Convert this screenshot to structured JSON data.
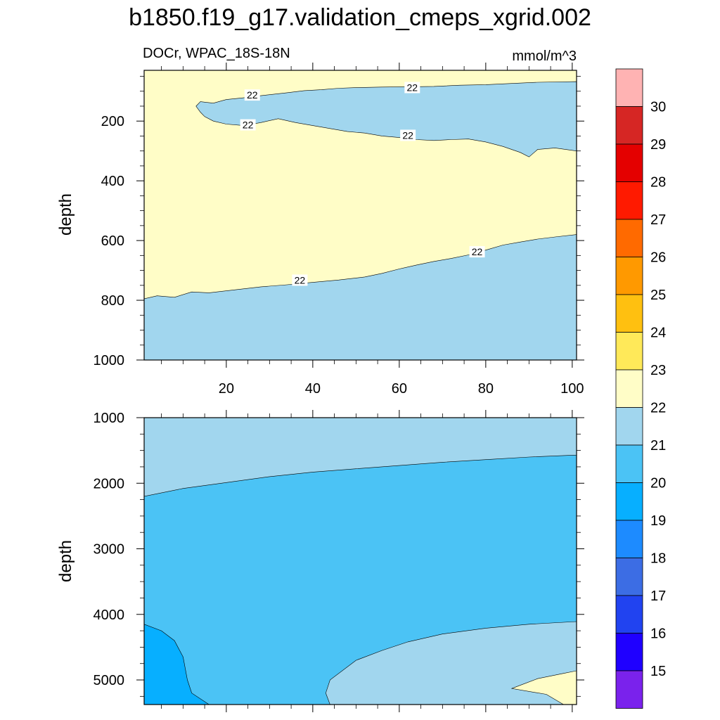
{
  "title": "b1850.f19_g17.validation_cmeps_xgrid.002",
  "chart_data": [
    {
      "type": "contour",
      "subtitle_left": "DOCr, WPAC_18S-18N",
      "subtitle_right": "mmol/m^3",
      "ylabel": "depth",
      "xlim": [
        1,
        101
      ],
      "ylim": [
        30,
        1000
      ],
      "y_inverted": true,
      "xticks": [
        20,
        40,
        60,
        80,
        100
      ],
      "xtick_labels": [
        "20",
        "40",
        "60",
        "80",
        "100"
      ],
      "yticks": [
        200,
        400,
        600,
        800,
        1000
      ],
      "ytick_labels": [
        "200",
        "400",
        "600",
        "800",
        "1000"
      ],
      "contour_labels": [
        {
          "text": "22",
          "x": 26,
          "y": 115
        },
        {
          "text": "22",
          "x": 63,
          "y": 90
        },
        {
          "text": "22",
          "x": 25,
          "y": 215
        },
        {
          "text": "22",
          "x": 62,
          "y": 250
        },
        {
          "text": "22",
          "x": 37,
          "y": 735
        },
        {
          "text": "22",
          "x": 78,
          "y": 640
        }
      ],
      "regions": [
        {
          "level": "22-23",
          "color": "#fffdc7",
          "polygon": [
            [
              1,
              30
            ],
            [
              101,
              30
            ],
            [
              101,
              1000
            ],
            [
              1,
              1000
            ]
          ]
        },
        {
          "level": "21-22",
          "color": "#a1d6ee",
          "polygon": [
            [
              1,
              795
            ],
            [
              4,
              785
            ],
            [
              8,
              790
            ],
            [
              12,
              772
            ],
            [
              16,
              775
            ],
            [
              22,
              765
            ],
            [
              28,
              755
            ],
            [
              34,
              748
            ],
            [
              40,
              740
            ],
            [
              46,
              732
            ],
            [
              52,
              722
            ],
            [
              56,
              710
            ],
            [
              60,
              695
            ],
            [
              64,
              682
            ],
            [
              68,
              670
            ],
            [
              72,
              660
            ],
            [
              76,
              648
            ],
            [
              80,
              632
            ],
            [
              84,
              615
            ],
            [
              88,
              605
            ],
            [
              92,
              595
            ],
            [
              96,
              588
            ],
            [
              101,
              580
            ],
            [
              101,
              1000
            ],
            [
              1,
              1000
            ]
          ]
        },
        {
          "level": "21-22",
          "color": "#a1d6ee",
          "polygon": [
            [
              13,
              150
            ],
            [
              14,
              135
            ],
            [
              17,
              140
            ],
            [
              20,
              128
            ],
            [
              24,
              122
            ],
            [
              28,
              115
            ],
            [
              34,
              105
            ],
            [
              38,
              98
            ],
            [
              42,
              95
            ],
            [
              46,
              90
            ],
            [
              50,
              88
            ],
            [
              56,
              86
            ],
            [
              62,
              85
            ],
            [
              68,
              84
            ],
            [
              74,
              80
            ],
            [
              80,
              78
            ],
            [
              86,
              74
            ],
            [
              92,
              70
            ],
            [
              101,
              68
            ],
            [
              101,
              300
            ],
            [
              96,
              290
            ],
            [
              92,
              295
            ],
            [
              90,
              320
            ],
            [
              88,
              305
            ],
            [
              84,
              285
            ],
            [
              80,
              270
            ],
            [
              76,
              260
            ],
            [
              72,
              262
            ],
            [
              68,
              265
            ],
            [
              64,
              262
            ],
            [
              60,
              255
            ],
            [
              56,
              250
            ],
            [
              52,
              240
            ],
            [
              48,
              235
            ],
            [
              44,
              225
            ],
            [
              40,
              215
            ],
            [
              36,
              205
            ],
            [
              32,
              192
            ],
            [
              28,
              205
            ],
            [
              24,
              215
            ],
            [
              20,
              210
            ],
            [
              17,
              200
            ],
            [
              15,
              185
            ],
            [
              14,
              170
            ]
          ]
        }
      ]
    },
    {
      "type": "contour",
      "ylabel": "depth",
      "xlim": [
        1,
        101
      ],
      "ylim": [
        1000,
        5375
      ],
      "y_inverted": true,
      "yticks": [
        1000,
        2000,
        3000,
        4000,
        5000
      ],
      "ytick_labels": [
        "1000",
        "2000",
        "3000",
        "4000",
        "5000"
      ],
      "regions": [
        {
          "level": "20-21",
          "color": "#4bc3f5",
          "polygon": [
            [
              1,
              1000
            ],
            [
              101,
              1000
            ],
            [
              101,
              5375
            ],
            [
              1,
              5375
            ]
          ]
        },
        {
          "level": "21-22",
          "color": "#a1d6ee",
          "polygon": [
            [
              1,
              1000
            ],
            [
              101,
              1000
            ],
            [
              101,
              1570
            ],
            [
              90,
              1600
            ],
            [
              80,
              1640
            ],
            [
              70,
              1680
            ],
            [
              60,
              1730
            ],
            [
              50,
              1780
            ],
            [
              40,
              1830
            ],
            [
              30,
              1900
            ],
            [
              20,
              1990
            ],
            [
              10,
              2080
            ],
            [
              1,
              2200
            ]
          ]
        },
        {
          "level": "19-20",
          "color": "#07afff",
          "polygon": [
            [
              1,
              4150
            ],
            [
              5,
              4250
            ],
            [
              8,
              4400
            ],
            [
              10,
              4650
            ],
            [
              11,
              5000
            ],
            [
              12,
              5200
            ],
            [
              16,
              5375
            ],
            [
              1,
              5375
            ]
          ]
        },
        {
          "level": "21-22",
          "color": "#a1d6ee",
          "polygon": [
            [
              44,
              5375
            ],
            [
              43,
              5200
            ],
            [
              44,
              5000
            ],
            [
              50,
              4700
            ],
            [
              56,
              4550
            ],
            [
              62,
              4420
            ],
            [
              70,
              4300
            ],
            [
              80,
              4210
            ],
            [
              90,
              4150
            ],
            [
              101,
              4110
            ],
            [
              101,
              5375
            ]
          ]
        },
        {
          "level": "22-23",
          "color": "#fffdc7",
          "polygon": [
            [
              86,
              5130
            ],
            [
              92,
              4980
            ],
            [
              98,
              4900
            ],
            [
              101,
              4860
            ],
            [
              101,
              5375
            ],
            [
              98,
              5375
            ],
            [
              94,
              5220
            ]
          ]
        }
      ]
    }
  ],
  "colorbar": {
    "labels": [
      "30",
      "29",
      "28",
      "27",
      "26",
      "25",
      "24",
      "23",
      "22",
      "21",
      "20",
      "19",
      "18",
      "17",
      "16",
      "15"
    ],
    "colors": [
      "#ffb3b3",
      "#d62624",
      "#e40000",
      "#ff1a00",
      "#ff6a00",
      "#ff9900",
      "#ffc010",
      "#ffe959",
      "#fffdc7",
      "#a1d6ee",
      "#4bc3f5",
      "#07afff",
      "#1d8bff",
      "#3c6de4",
      "#2143f0",
      "#1f00ff",
      "#7a22ec"
    ]
  }
}
